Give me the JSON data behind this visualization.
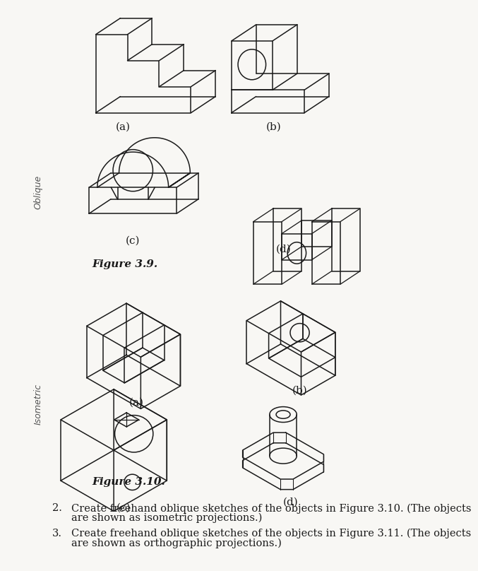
{
  "bg_color": "#f8f7f4",
  "line_color": "#1a1a1a",
  "lw": 1.1,
  "fig39": "Figure 3.9.",
  "fig310": "Figure 3.10.",
  "obl_label": "Oblique",
  "iso_label": "Isometric",
  "labels": [
    "(a)",
    "(b)",
    "(c)",
    "(d)"
  ],
  "num2": "2.",
  "num3": "3.",
  "text2a": "Create freehand oblique sketches of the objects in Figure 3.10. (The objects",
  "text2b": "are shown as isometric projections.)",
  "text3a": "Create freehand oblique sketches of the objects in Figure 3.11. (The objects",
  "text3b": "are shown as orthographic projections.)"
}
